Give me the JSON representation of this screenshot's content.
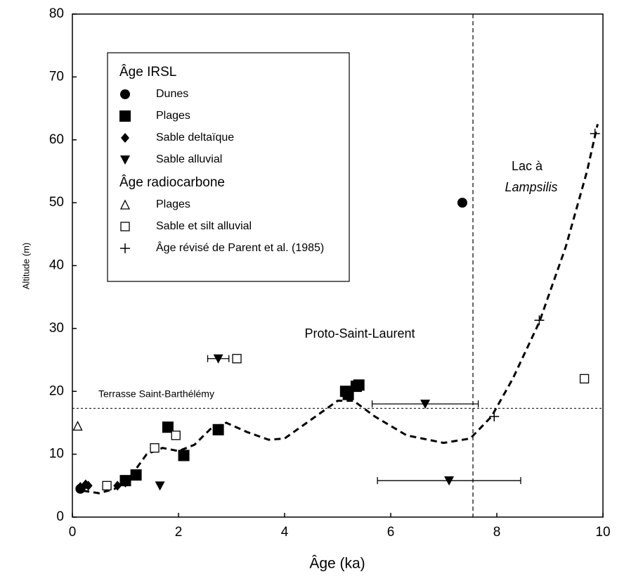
{
  "chart_data": {
    "type": "scatter",
    "xlabel": "Âge (ka)",
    "ylabel": "Altitude (m)",
    "xlim": [
      0,
      10
    ],
    "xticks": [
      0,
      2,
      4,
      6,
      8,
      10
    ],
    "ylim": [
      0,
      80
    ],
    "yticks": [
      0,
      10,
      20,
      30,
      40,
      50,
      60,
      70,
      80
    ],
    "color": "#000000",
    "groups": [
      {
        "name": "Âge IRSL",
        "series": [
          {
            "name": "Dunes",
            "marker": "circle",
            "x": [
              7.35,
              0.15
            ],
            "values": [
              50,
              4.5
            ]
          },
          {
            "name": "Plages",
            "marker": "square",
            "x": [
              1.0,
              1.2,
              1.8,
              2.1,
              2.75,
              5.15,
              5.2,
              5.35,
              5.4
            ],
            "values": [
              5.8,
              6.7,
              14.3,
              9.8,
              13.9,
              20.0,
              19.5,
              20.8,
              21.0
            ]
          },
          {
            "name": "Sable deltaïque",
            "marker": "diamond",
            "x": [
              0.15,
              0.25,
              0.3,
              0.85,
              1.0
            ],
            "values": [
              4.8,
              5.2,
              5.0,
              5.0,
              5.5
            ]
          },
          {
            "name": "Sable alluvial",
            "marker": "triangle-down",
            "x": [
              1.65,
              2.75,
              6.65,
              7.1
            ],
            "values": [
              5.0,
              25.2,
              18.0,
              5.8
            ],
            "errors": [
              null,
              0.2,
              1.0,
              1.35
            ]
          }
        ]
      },
      {
        "name": "Âge radiocarbone",
        "series": [
          {
            "name": "Plages",
            "marker": "triangle-open",
            "x": [
              0.1
            ],
            "values": [
              14.5
            ]
          },
          {
            "name": "Sable et silt alluvial",
            "marker": "square-open",
            "x": [
              0.65,
              1.55,
              1.95,
              3.1,
              9.65
            ],
            "values": [
              5.0,
              11.0,
              13.0,
              25.2,
              22.0
            ]
          },
          {
            "name": "Âge révisé de Parent et al. (1985)",
            "marker": "plus",
            "x": [
              7.95,
              8.8,
              9.85
            ],
            "values": [
              16.0,
              31.3,
              61.0
            ]
          }
        ]
      }
    ],
    "curve": {
      "x": [
        0.2,
        0.5,
        0.8,
        1.1,
        1.4,
        1.7,
        2.0,
        2.3,
        2.6,
        2.9,
        3.3,
        3.7,
        4.0,
        4.5,
        5.0,
        5.3,
        5.7,
        6.3,
        7.0,
        7.5,
        7.9,
        8.3,
        8.8,
        9.3,
        9.7,
        9.9
      ],
      "values": [
        4.2,
        3.8,
        4.5,
        6.5,
        10,
        11,
        10.5,
        11.5,
        14,
        15,
        13.5,
        12.3,
        12.5,
        15.5,
        18.5,
        18.5,
        16,
        13,
        11.8,
        12.5,
        16,
        22,
        31,
        43,
        55,
        62.5
      ]
    },
    "vline": 7.55,
    "hline": 17.3,
    "hline_label": "Terrasse Saint-Barthélémy",
    "annotations": [
      "Proto-Saint-Laurent",
      "Lac à",
      "Lampsilis"
    ]
  }
}
